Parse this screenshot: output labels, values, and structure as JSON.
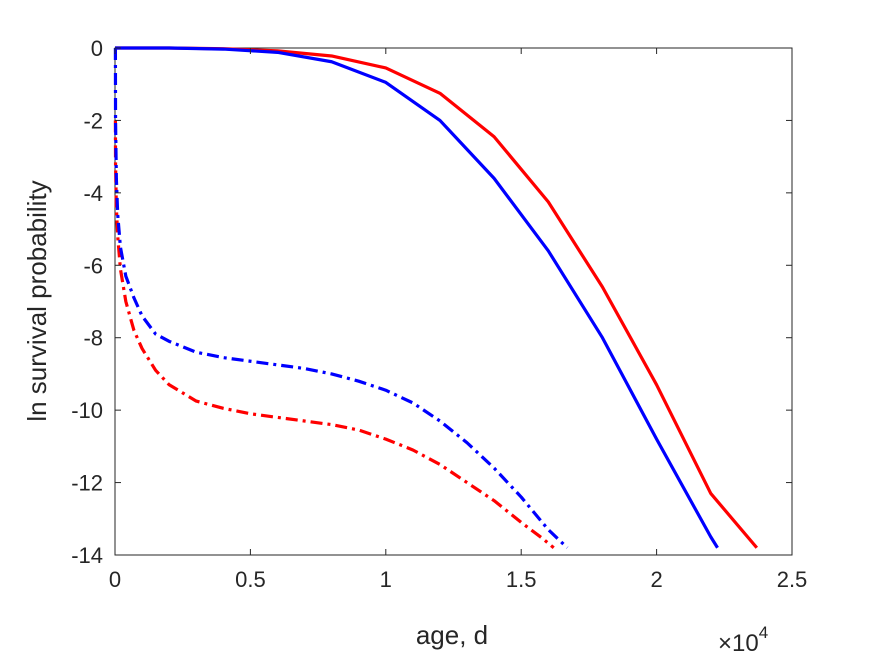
{
  "chart_data": {
    "type": "line",
    "xlabel": "age, d",
    "ylabel": "ln survival probability",
    "x_exponent_label": {
      "base": "×10",
      "power": "4"
    },
    "xlim": [
      0,
      2.5
    ],
    "ylim": [
      -14,
      0
    ],
    "x_ticks": [
      "0",
      "0.5",
      "1",
      "1.5",
      "2",
      "2.5"
    ],
    "x_tick_values": [
      0,
      0.5,
      1,
      1.5,
      2,
      2.5
    ],
    "y_ticks": [
      "0",
      "-2",
      "-4",
      "-6",
      "-8",
      "-10",
      "-12",
      "-14"
    ],
    "y_tick_values": [
      0,
      -2,
      -4,
      -6,
      -8,
      -10,
      -12,
      -14
    ],
    "grid": false,
    "series": [
      {
        "color": "#ff0000",
        "style": "solid",
        "x": [
          0,
          0.2,
          0.4,
          0.6,
          0.8,
          1.0,
          1.2,
          1.4,
          1.6,
          1.8,
          2.0,
          2.2,
          2.37
        ],
        "y": [
          0,
          0,
          -0.02,
          -0.08,
          -0.22,
          -0.55,
          -1.25,
          -2.45,
          -4.25,
          -6.6,
          -9.3,
          -12.3,
          -13.8
        ]
      },
      {
        "color": "#0000ff",
        "style": "solid",
        "x": [
          0,
          0.2,
          0.4,
          0.6,
          0.8,
          1.0,
          1.2,
          1.4,
          1.6,
          1.8,
          2.0,
          2.2,
          2.225
        ],
        "y": [
          0,
          0,
          -0.03,
          -0.12,
          -0.38,
          -0.95,
          -2.0,
          -3.6,
          -5.6,
          -8.0,
          -10.8,
          -13.5,
          -13.8
        ]
      },
      {
        "color": "#ff0000",
        "style": "dashdot",
        "x": [
          0.0015,
          0.002,
          0.005,
          0.01,
          0.02,
          0.04,
          0.07,
          0.1,
          0.15,
          0.2,
          0.3,
          0.4,
          0.5,
          0.6,
          0.7,
          0.8,
          0.9,
          1.0,
          1.1,
          1.2,
          1.3,
          1.4,
          1.5,
          1.58,
          1.62
        ],
        "y": [
          -2.0,
          -3.2,
          -4.4,
          -5.2,
          -6.1,
          -7.0,
          -7.8,
          -8.3,
          -8.9,
          -9.3,
          -9.75,
          -9.95,
          -10.1,
          -10.2,
          -10.3,
          -10.4,
          -10.55,
          -10.8,
          -11.1,
          -11.5,
          -12.0,
          -12.5,
          -13.1,
          -13.55,
          -13.8
        ]
      },
      {
        "color": "#0000ff",
        "style": "dashdot",
        "x": [
          0.0015,
          0.002,
          0.005,
          0.01,
          0.02,
          0.04,
          0.07,
          0.1,
          0.15,
          0.2,
          0.3,
          0.4,
          0.5,
          0.6,
          0.7,
          0.8,
          0.9,
          1.0,
          1.1,
          1.2,
          1.3,
          1.4,
          1.5,
          1.6,
          1.67
        ],
        "y": [
          0.0,
          -2.0,
          -3.6,
          -4.6,
          -5.5,
          -6.3,
          -6.9,
          -7.4,
          -7.9,
          -8.1,
          -8.4,
          -8.55,
          -8.65,
          -8.75,
          -8.85,
          -9.0,
          -9.2,
          -9.45,
          -9.8,
          -10.3,
          -10.9,
          -11.6,
          -12.4,
          -13.3,
          -13.8
        ]
      }
    ]
  }
}
